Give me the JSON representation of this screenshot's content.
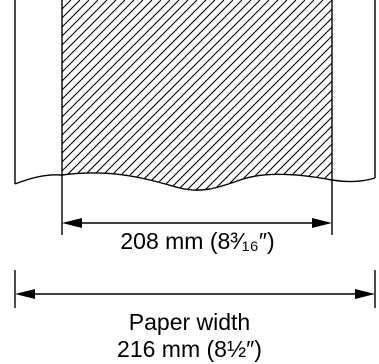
{
  "dimensions": {
    "print_width_label": "208 mm (8³⁄₁₆″)",
    "paper_width_title": "Paper width",
    "paper_width_label": "216 mm (8½″)"
  },
  "colors": {
    "line": "#000000",
    "background": "#ffffff"
  }
}
